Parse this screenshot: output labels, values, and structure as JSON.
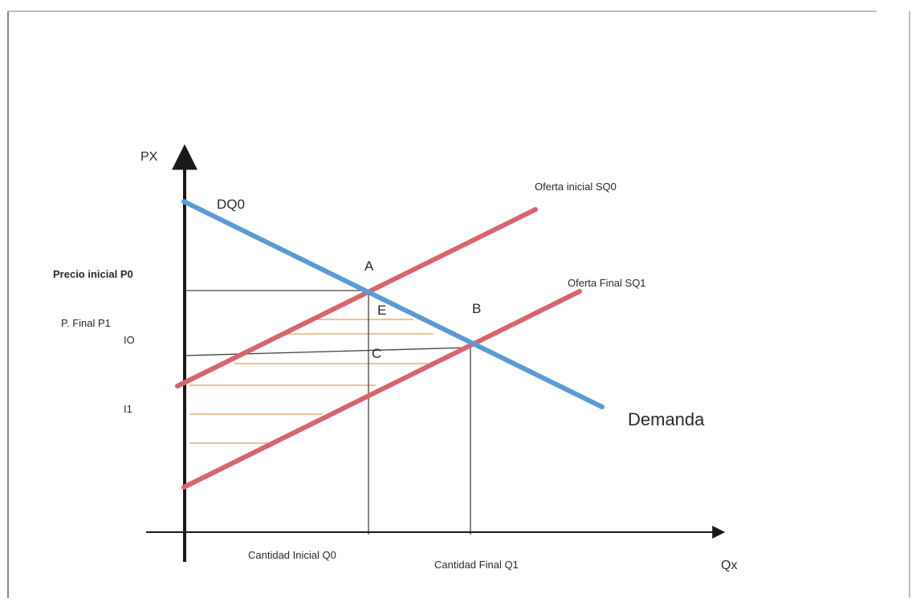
{
  "colors": {
    "demand": "#5b9bd5",
    "supply": "#d9646e",
    "axis": "#1a1a1a",
    "guide": "#444444",
    "hatch": "#e0a060",
    "frame": "#888888"
  },
  "labels": {
    "y_axis": "PX",
    "x_axis": "Qx",
    "demand_tag": "DQ0",
    "demand_name": "Demanda",
    "supply_initial": "Oferta inicial SQ0",
    "supply_final": "Oferta Final SQ1",
    "price_initial": "Precio inicial P0",
    "price_final": "P. Final  P1",
    "io": "IO",
    "i1": "I1",
    "qty_initial": "Cantidad Inicial Q0",
    "qty_final": "Cantidad Final Q1",
    "point_a": "A",
    "point_b": "B",
    "point_c": "C",
    "point_e": "E"
  }
}
